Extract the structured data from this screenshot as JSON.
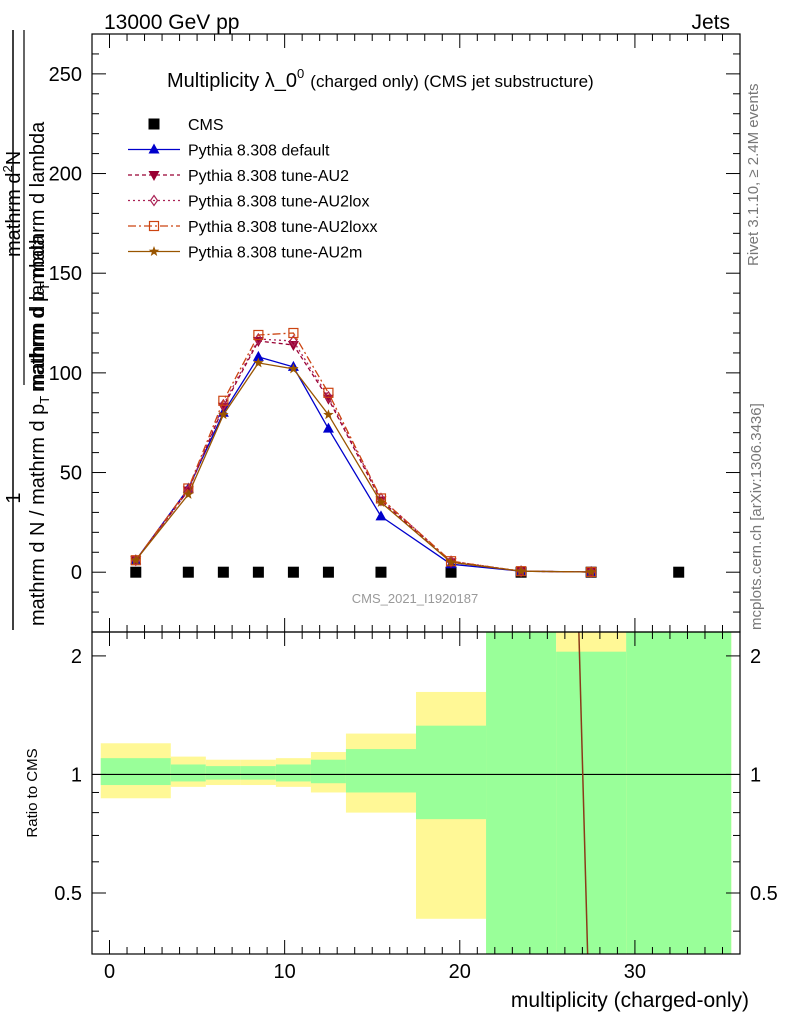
{
  "header": {
    "left": "13000 GeV pp",
    "right": "Jets"
  },
  "side_text": {
    "rivet": "Rivet 3.1.10, ≥ 2.4M events",
    "mcplots": "mcplots.cern.ch [arXiv:1306.3436]"
  },
  "chart_data": {
    "type": "line",
    "title": "Multiplicity λ_0",
    "title_sup": "0",
    "title_suffix": "(charged only) (CMS jet substructure)",
    "watermark": "CMS_2021_I1920187",
    "xlabel": "multiplicity (charged-only)",
    "ylabel_main_numerator": "1",
    "ylabel_main_denominator": "mathrm d N / mathrm d p",
    "ylabel_main_denominator_sub": "T",
    "ylabel_main_denominator_tail": " mathrm d lambda",
    "ylabel_main_top": "mathrm d",
    "ylabel_main_top_sup": "2",
    "ylabel_main_top_tail": "N",
    "ylabel_main_bottom": "mathrm d p",
    "ylabel_main_bottom_sub": "T",
    "ylabel_main_bottom_tail": " mathrm d lambda",
    "ylabel_ratio": "Ratio to CMS",
    "xlim": [
      -1,
      36
    ],
    "ylim": [
      -30,
      270
    ],
    "ratio_ylim": [
      0.35,
      2.3
    ],
    "x_ticks": [
      "0",
      "10",
      "20",
      "30"
    ],
    "y_ticks": [
      "0",
      "50",
      "100",
      "150",
      "200",
      "250"
    ],
    "ratio_ticks": [
      "0.5",
      "1",
      "2"
    ],
    "legend_position": "top-left",
    "series": [
      {
        "name": "CMS",
        "color": "#000000",
        "marker": "square",
        "dash": "none",
        "x": [
          1.5,
          4.5,
          6.5,
          8.5,
          10.5,
          12.5,
          15.5,
          19.5,
          23.5,
          27.5,
          32.5
        ],
        "y": [
          0,
          0,
          0,
          0,
          0,
          0,
          0,
          0,
          0,
          0,
          0
        ]
      },
      {
        "name": "Pythia 8.308 default",
        "color": "#0000cc",
        "marker": "triangle-up",
        "dash": "solid",
        "x": [
          1.5,
          4.5,
          6.5,
          8.5,
          10.5,
          12.5,
          15.5,
          19.5,
          23.5,
          27.5
        ],
        "y": [
          6,
          42,
          80,
          108,
          103,
          72,
          28,
          4,
          0.5,
          0.1
        ]
      },
      {
        "name": "Pythia 8.308 tune-AU2",
        "color": "#990033",
        "marker": "triangle-down",
        "dash": "4,3",
        "x": [
          1.5,
          4.5,
          6.5,
          8.5,
          10.5,
          12.5,
          15.5,
          19.5,
          23.5,
          27.5
        ],
        "y": [
          6,
          41,
          83,
          116,
          114,
          87,
          36,
          5,
          0.5,
          0.1
        ]
      },
      {
        "name": "Pythia 8.308 tune-AU2lox",
        "color": "#aa2255",
        "marker": "diamond-open",
        "dash": "2,3",
        "x": [
          1.5,
          4.5,
          6.5,
          8.5,
          10.5,
          12.5,
          15.5,
          19.5,
          23.5,
          27.5
        ],
        "y": [
          6,
          41,
          84,
          117,
          116,
          88,
          37,
          5.5,
          0.5,
          0.1
        ]
      },
      {
        "name": "Pythia 8.308 tune-AU2loxx",
        "color": "#cc4411",
        "marker": "square-open",
        "dash": "8,3,2,3",
        "x": [
          1.5,
          4.5,
          6.5,
          8.5,
          10.5,
          12.5,
          15.5,
          19.5,
          23.5,
          27.5
        ],
        "y": [
          6,
          42,
          86,
          119,
          120,
          90,
          37,
          5.5,
          0.5,
          0.1
        ]
      },
      {
        "name": "Pythia 8.308 tune-AU2m",
        "color": "#995500",
        "marker": "star",
        "dash": "solid",
        "x": [
          1.5,
          4.5,
          6.5,
          8.5,
          10.5,
          12.5,
          15.5,
          19.5,
          23.5,
          27.5
        ],
        "y": [
          6,
          39,
          79,
          105,
          102,
          79,
          35,
          5,
          0.5,
          0.1
        ]
      }
    ],
    "ratio_bands": [
      {
        "x0": -0.5,
        "x1": 3.5,
        "yellow": [
          0.87,
          1.2
        ],
        "green": [
          0.94,
          1.1
        ]
      },
      {
        "x0": 3.5,
        "x1": 5.5,
        "yellow": [
          0.93,
          1.11
        ],
        "green": [
          0.96,
          1.06
        ]
      },
      {
        "x0": 5.5,
        "x1": 7.5,
        "yellow": [
          0.94,
          1.09
        ],
        "green": [
          0.97,
          1.05
        ]
      },
      {
        "x0": 7.5,
        "x1": 9.5,
        "yellow": [
          0.94,
          1.09
        ],
        "green": [
          0.97,
          1.05
        ]
      },
      {
        "x0": 9.5,
        "x1": 11.5,
        "yellow": [
          0.93,
          1.1
        ],
        "green": [
          0.96,
          1.06
        ]
      },
      {
        "x0": 11.5,
        "x1": 13.5,
        "yellow": [
          0.9,
          1.14
        ],
        "green": [
          0.95,
          1.09
        ]
      },
      {
        "x0": 13.5,
        "x1": 17.5,
        "yellow": [
          0.8,
          1.27
        ],
        "green": [
          0.9,
          1.16
        ]
      },
      {
        "x0": 17.5,
        "x1": 21.5,
        "yellow": [
          0.43,
          1.62
        ],
        "green": [
          0.77,
          1.33
        ]
      },
      {
        "x0": 21.5,
        "x1": 25.5,
        "yellow": [
          0.35,
          2.3
        ],
        "green": [
          0.35,
          2.3
        ]
      },
      {
        "x0": 25.5,
        "x1": 29.5,
        "yellow": [
          0.35,
          2.3
        ],
        "green": [
          0.35,
          2.05
        ]
      },
      {
        "x0": 29.5,
        "x1": 35.5,
        "yellow": [
          0.35,
          2.3
        ],
        "green": [
          0.35,
          2.3
        ]
      }
    ],
    "ratio_line": {
      "color": "#8b3a1a",
      "x": [
        26.8,
        27.3
      ],
      "y": [
        2.3,
        0.35
      ]
    }
  }
}
